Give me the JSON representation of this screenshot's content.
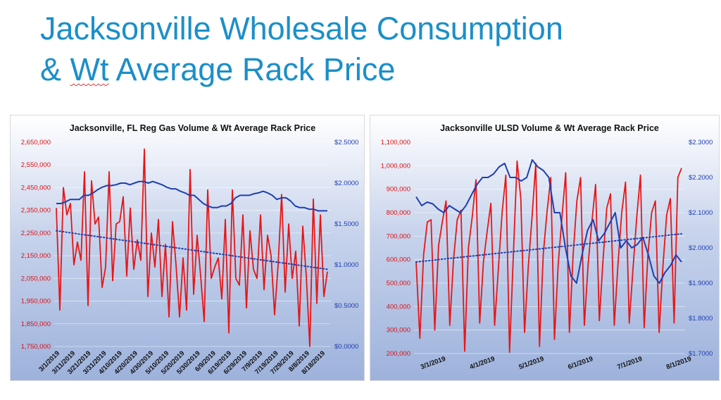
{
  "page": {
    "title_line1": "Jacksonville Wholesale Consumption",
    "title_line2_a": "& ",
    "title_line2_wt": "Wt",
    "title_line2_b": " Average Rack Price"
  },
  "colors": {
    "volume": "#e81515",
    "price": "#1f3fb0",
    "title": "#1b8fc9"
  },
  "chart_data": [
    {
      "type": "line",
      "title": "Jacksonville, FL Reg Gas Volume & Wt Average Rack Price",
      "y_left_ticks": [
        "2,650,000",
        "2,550,000",
        "2,450,000",
        "2,350,000",
        "2,250,000",
        "2,150,000",
        "2,050,000",
        "1,950,000",
        "1,850,000",
        "1,750,000"
      ],
      "y_right_ticks": [
        "$2.5000",
        "$2.0000",
        "$1.5000",
        "$1.0000",
        "$0.5000",
        "$0.0000"
      ],
      "x_ticks": [
        "3/1/2019",
        "3/11/2019",
        "3/21/2019",
        "3/31/2019",
        "4/10/2019",
        "4/20/2019",
        "4/30/2019",
        "5/10/2019",
        "5/20/2019",
        "5/30/2019",
        "6/9/2019",
        "6/19/2019",
        "6/29/2019",
        "7/9/2019",
        "7/19/2019",
        "7/29/2019",
        "8/8/2019",
        "8/18/2019"
      ],
      "ylim_left": [
        1750000,
        2650000
      ],
      "ylim_right": [
        0,
        2.5
      ],
      "grid": true,
      "series": [
        {
          "name": "Volume",
          "axis": "left",
          "values": [
            2360000,
            1910000,
            2450000,
            2330000,
            2380000,
            2110000,
            2210000,
            2130000,
            2520000,
            1930000,
            2480000,
            2290000,
            2320000,
            2010000,
            2100000,
            2520000,
            2040000,
            2290000,
            2300000,
            2410000,
            2060000,
            2360000,
            2090000,
            2220000,
            2130000,
            2620000,
            1970000,
            2250000,
            2100000,
            2310000,
            1970000,
            2200000,
            1880000,
            2300000,
            2110000,
            1880000,
            2140000,
            1910000,
            2530000,
            1980000,
            2240000,
            2060000,
            1860000,
            2440000,
            2050000,
            2100000,
            2140000,
            1960000,
            2310000,
            1810000,
            2440000,
            2050000,
            2020000,
            2330000,
            1920000,
            2260000,
            2090000,
            2050000,
            2330000,
            2000000,
            2240000,
            2150000,
            1890000,
            2110000,
            2420000,
            1990000,
            2290000,
            2050000,
            2170000,
            1840000,
            2280000,
            2060000,
            1750000,
            2400000,
            1940000,
            2330000,
            1970000,
            2080000
          ]
        },
        {
          "name": "Wt Average Rack Price",
          "axis": "right",
          "values": [
            1.75,
            1.75,
            1.77,
            1.8,
            1.8,
            1.8,
            1.85,
            1.85,
            1.88,
            1.92,
            1.95,
            1.97,
            1.97,
            1.98,
            2.0,
            2.0,
            1.98,
            2.0,
            2.02,
            2.02,
            2.0,
            2.02,
            2.0,
            1.98,
            1.95,
            1.93,
            1.93,
            1.9,
            1.88,
            1.85,
            1.85,
            1.8,
            1.75,
            1.72,
            1.7,
            1.7,
            1.72,
            1.72,
            1.75,
            1.82,
            1.85,
            1.85,
            1.85,
            1.87,
            1.88,
            1.9,
            1.88,
            1.85,
            1.8,
            1.82,
            1.82,
            1.78,
            1.72,
            1.7,
            1.7,
            1.68,
            1.68,
            1.66,
            1.66,
            1.66
          ]
        },
        {
          "name": "Trend",
          "axis": "left",
          "values": [
            2260000,
            2090000
          ]
        }
      ]
    },
    {
      "type": "line",
      "title": "Jacksonville ULSD Volume & Wt Average Rack Price",
      "y_left_ticks": [
        "1,100,000",
        "1,000,000",
        "900,000",
        "800,000",
        "700,000",
        "600,000",
        "500,000",
        "400,000",
        "300,000",
        "200,000"
      ],
      "y_right_ticks": [
        "$2.3000",
        "$2.2000",
        "$2.1000",
        "$2.0000",
        "$1.9000",
        "$1.8000",
        "$1.7000"
      ],
      "x_ticks": [
        "3/1/2019",
        "4/1/2019",
        "5/1/2019",
        "6/1/2019",
        "7/1/2019",
        "8/1/2019"
      ],
      "ylim_left": [
        200000,
        1100000
      ],
      "ylim_right": [
        1.7,
        2.3
      ],
      "grid": true,
      "series": [
        {
          "name": "Volume",
          "axis": "left",
          "values": [
            590000,
            265000,
            620000,
            760000,
            770000,
            300000,
            660000,
            760000,
            850000,
            320000,
            600000,
            770000,
            810000,
            210000,
            650000,
            780000,
            940000,
            330000,
            590000,
            720000,
            840000,
            320000,
            560000,
            800000,
            960000,
            205000,
            620000,
            1020000,
            860000,
            290000,
            570000,
            780000,
            1010000,
            230000,
            620000,
            800000,
            950000,
            260000,
            580000,
            780000,
            970000,
            290000,
            620000,
            850000,
            950000,
            320000,
            580000,
            760000,
            920000,
            340000,
            600000,
            820000,
            880000,
            320000,
            580000,
            800000,
            930000,
            330000,
            560000,
            780000,
            960000,
            310000,
            620000,
            800000,
            850000,
            290000,
            570000,
            790000,
            860000,
            330000,
            950000,
            990000
          ]
        },
        {
          "name": "Wt Average Rack Price",
          "axis": "right",
          "values": [
            2.145,
            2.12,
            2.13,
            2.125,
            2.11,
            2.1,
            2.12,
            2.11,
            2.1,
            2.12,
            2.15,
            2.18,
            2.2,
            2.2,
            2.21,
            2.23,
            2.24,
            2.2,
            2.2,
            2.19,
            2.2,
            2.25,
            2.23,
            2.22,
            2.2,
            2.1,
            2.1,
            2.0,
            1.92,
            1.9,
            1.98,
            2.05,
            2.08,
            2.02,
            2.04,
            2.07,
            2.1,
            2.0,
            2.02,
            2.0,
            2.01,
            2.03,
            1.98,
            1.92,
            1.9,
            1.93,
            1.95,
            1.98,
            1.96
          ]
        },
        {
          "name": "Trend",
          "axis": "left",
          "values": [
            590000,
            710000
          ]
        }
      ]
    }
  ]
}
